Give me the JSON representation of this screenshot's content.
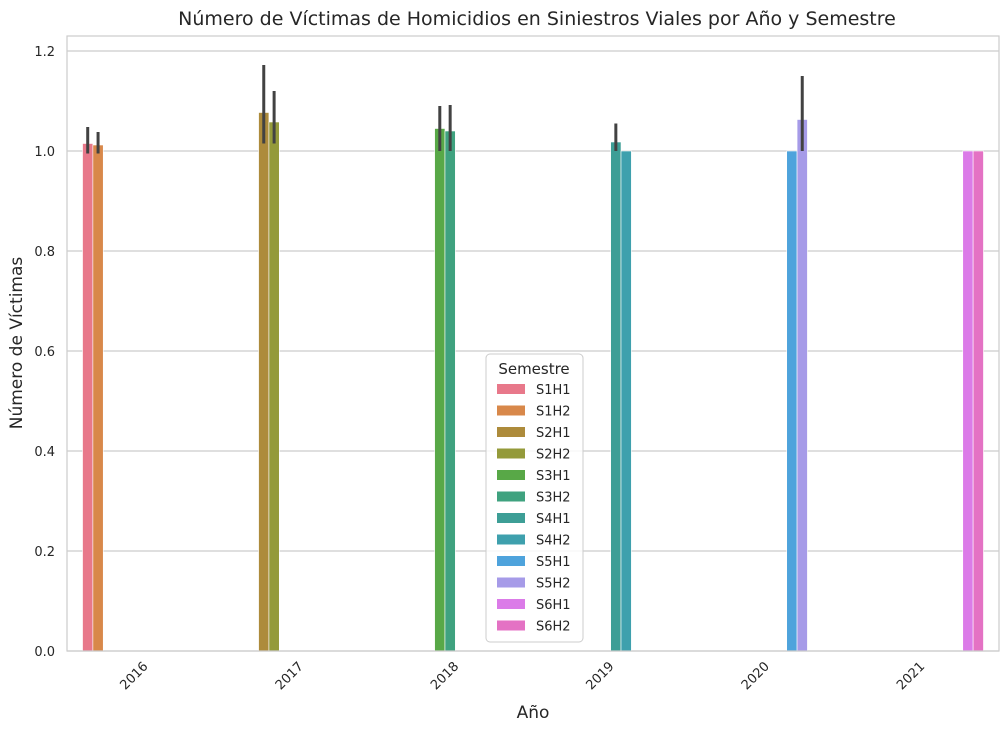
{
  "chart_data": {
    "type": "bar",
    "title": "Número de Víctimas de Homicidios en Siniestros Viales por Año y Semestre",
    "xlabel": "Año",
    "ylabel": "Número de Víctimas",
    "categories": [
      "2016",
      "2017",
      "2018",
      "2019",
      "2020",
      "2021"
    ],
    "ylim": [
      0,
      1.23
    ],
    "yticks": [
      "0.0",
      "0.2",
      "0.4",
      "0.6",
      "0.8",
      "1.0",
      "1.2"
    ],
    "grid": true,
    "legend": {
      "title": "Semestre",
      "placement": "lower-center"
    },
    "series": [
      {
        "name": "S1H1",
        "color": "#e8788a",
        "values": [
          1.015,
          null,
          null,
          null,
          null,
          null
        ],
        "err": [
          [
            0.995,
            1.048
          ],
          null,
          null,
          null,
          null,
          null
        ]
      },
      {
        "name": "S1H2",
        "color": "#d8884a",
        "values": [
          1.012,
          null,
          null,
          null,
          null,
          null
        ],
        "err": [
          [
            0.995,
            1.038
          ],
          null,
          null,
          null,
          null,
          null
        ]
      },
      {
        "name": "S2H1",
        "color": "#ad8b3b",
        "values": [
          null,
          1.077,
          null,
          null,
          null,
          null
        ],
        "err": [
          null,
          [
            1.015,
            1.172
          ],
          null,
          null,
          null,
          null
        ]
      },
      {
        "name": "S2H2",
        "color": "#949a3a",
        "values": [
          null,
          1.058,
          null,
          null,
          null,
          null
        ],
        "err": [
          null,
          [
            1.015,
            1.12
          ],
          null,
          null,
          null,
          null
        ]
      },
      {
        "name": "S3H1",
        "color": "#58a847",
        "values": [
          null,
          null,
          1.045,
          null,
          null,
          null
        ],
        "err": [
          null,
          null,
          [
            1.0,
            1.09
          ],
          null,
          null,
          null
        ]
      },
      {
        "name": "S3H2",
        "color": "#3fa27f",
        "values": [
          null,
          null,
          1.04,
          null,
          null,
          null
        ],
        "err": [
          null,
          null,
          [
            1.0,
            1.092
          ],
          null,
          null,
          null
        ]
      },
      {
        "name": "S4H1",
        "color": "#3d9e96",
        "values": [
          null,
          null,
          null,
          1.018,
          null,
          null
        ],
        "err": [
          null,
          null,
          null,
          [
            1.0,
            1.055
          ],
          null,
          null
        ]
      },
      {
        "name": "S4H2",
        "color": "#3ea0ad",
        "values": [
          null,
          null,
          null,
          1.0,
          null,
          null
        ],
        "err": [
          null,
          null,
          null,
          null,
          null,
          null
        ]
      },
      {
        "name": "S5H1",
        "color": "#4ea3dc",
        "values": [
          null,
          null,
          null,
          null,
          1.0,
          null
        ],
        "err": [
          null,
          null,
          null,
          null,
          null,
          null
        ]
      },
      {
        "name": "S5H2",
        "color": "#a69be8",
        "values": [
          null,
          null,
          null,
          null,
          1.063,
          null
        ],
        "err": [
          null,
          null,
          null,
          null,
          [
            1.0,
            1.15
          ],
          null
        ]
      },
      {
        "name": "S6H1",
        "color": "#db7be8",
        "values": [
          null,
          null,
          null,
          null,
          null,
          1.0
        ],
        "err": [
          null,
          null,
          null,
          null,
          null,
          null
        ]
      },
      {
        "name": "S6H2",
        "color": "#e472c4",
        "values": [
          null,
          null,
          null,
          null,
          null,
          1.0
        ],
        "err": [
          null,
          null,
          null,
          null,
          null,
          null
        ]
      }
    ]
  }
}
